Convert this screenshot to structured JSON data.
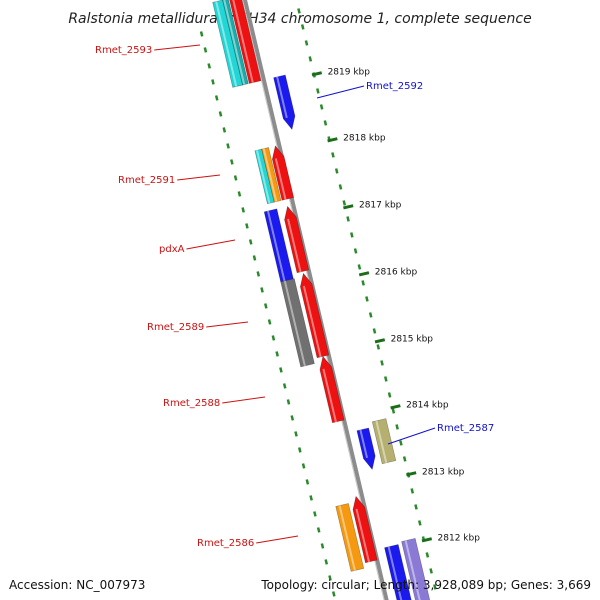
{
  "title": "Ralstonia metallidurans CH34 chromosome 1, complete sequence",
  "accession": "Accession: NC_007973",
  "summary": "Topology: circular; Length: 3,928,089 bp; Genes: 3,669",
  "kbp_ticks": [
    "2819 kbp",
    "2818 kbp",
    "2817 kbp",
    "2816 kbp",
    "2815 kbp",
    "2814 kbp",
    "2813 kbp",
    "2812 kbp"
  ],
  "gene_labels": [
    {
      "text": "Rmet_2593",
      "strand": "minus"
    },
    {
      "text": "Rmet_2592",
      "strand": "plus"
    },
    {
      "text": "Rmet_2591",
      "strand": "minus"
    },
    {
      "text": "pdxA",
      "strand": "minus"
    },
    {
      "text": "Rmet_2589",
      "strand": "minus"
    },
    {
      "text": "Rmet_2588",
      "strand": "minus"
    },
    {
      "text": "Rmet_2587",
      "strand": "plus"
    },
    {
      "text": "Rmet_2586",
      "strand": "minus"
    }
  ],
  "colors": {
    "backbone": "#8c8c8c",
    "dotted_ring": "#2a8a2a",
    "minus_label": "#cc1111",
    "plus_label": "#1111cc",
    "cds_red": "#ee1111",
    "cds_blue": "#1a1aee",
    "cyan": "#22d6d6",
    "orange": "#f59a10",
    "gray": "#707070",
    "olive": "#b5b070",
    "lavender": "#8a7ad6"
  }
}
